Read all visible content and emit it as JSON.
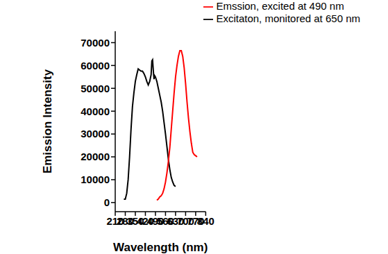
{
  "chart_data": {
    "type": "line",
    "x_label": "Wavelength (nm)",
    "y_label": "Emission Intensity",
    "xlim": [
      210,
      840
    ],
    "xticks": [
      210,
      280,
      350,
      420,
      490,
      560,
      630,
      700,
      770,
      840
    ],
    "ylim": [
      -4000,
      75000
    ],
    "yticks": [
      0,
      10000,
      20000,
      30000,
      40000,
      50000,
      60000,
      70000
    ],
    "grid": false,
    "legend": "top-right",
    "series": [
      {
        "name": "Excitaton, monitored at 650 nm",
        "color": "#000000",
        "x": [
          270,
          280,
          290,
          300,
          310,
          320,
          330,
          340,
          350,
          360,
          370,
          380,
          390,
          400,
          410,
          420,
          430,
          440,
          450,
          460,
          465,
          470,
          475,
          480,
          485,
          490,
          500,
          510,
          520,
          530,
          540,
          550,
          560,
          570,
          580,
          590,
          600,
          610,
          620,
          630
        ],
        "values": [
          1500,
          1500,
          4000,
          10000,
          20000,
          32000,
          42000,
          48000,
          53000,
          56000,
          58500,
          58000,
          57500,
          57500,
          56500,
          55000,
          53000,
          51500,
          53000,
          56000,
          62000,
          62500,
          58000,
          54000,
          55500,
          55000,
          53000,
          50000,
          47000,
          44000,
          40000,
          35000,
          30000,
          24500,
          19000,
          14500,
          11000,
          9000,
          7500,
          7000
        ]
      },
      {
        "name": "Emssion, excited at 490 nm",
        "color": "#ff0000",
        "x": [
          500,
          510,
          520,
          530,
          540,
          550,
          560,
          570,
          580,
          590,
          600,
          610,
          620,
          630,
          640,
          650,
          660,
          670,
          680,
          690,
          700,
          710,
          720,
          730,
          740,
          750,
          760,
          770,
          780
        ],
        "values": [
          1000,
          1500,
          2500,
          3000,
          4000,
          6000,
          9000,
          13000,
          18000,
          24000,
          32000,
          40000,
          48000,
          55000,
          60000,
          64000,
          66500,
          66500,
          64000,
          59000,
          52000,
          44000,
          37000,
          31000,
          26000,
          22000,
          21000,
          20500,
          20000
        ]
      }
    ]
  }
}
